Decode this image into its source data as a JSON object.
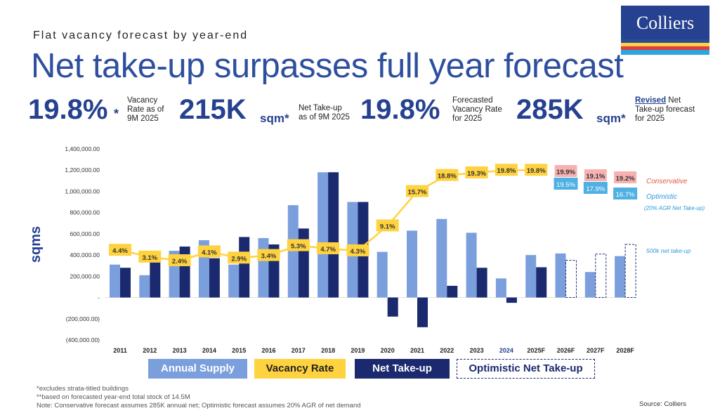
{
  "header": {
    "subtitle": "Flat vacancy forecast by year-end",
    "title": "Net take-up surpasses full year forecast"
  },
  "logo": {
    "text": "Colliers",
    "bar_colors": [
      "#2b4a9a",
      "#ffd23f",
      "#e23b3b",
      "#2aa5dd"
    ]
  },
  "kpis": {
    "vacancy": {
      "value": "19.8%",
      "star": "*",
      "label_lines": [
        "Vacancy",
        "Rate as of",
        "9M 2025"
      ]
    },
    "take_up": {
      "value": "215K",
      "unit": "sqm*",
      "label_lines": [
        "Net Take-up",
        "as of 9M 2025"
      ]
    },
    "forecast_vacancy": {
      "value": "19.8%",
      "label_lines": [
        "Forecasted",
        "Vacancy Rate",
        "for 2025"
      ]
    },
    "forecast_take_up": {
      "value": "285K",
      "unit": "sqm*",
      "revised": "Revised",
      "label_rest": " Net",
      "label_lines": [
        "Take-up forecast",
        "for 2025"
      ]
    }
  },
  "chart_data": {
    "type": "bar",
    "title": "",
    "ylabel": "sqms",
    "xlabel": "",
    "ylim": [
      -400000,
      1400000
    ],
    "y_ticks": [
      1400000,
      1200000,
      1000000,
      800000,
      600000,
      400000,
      200000,
      0,
      -200000,
      -400000
    ],
    "y_tick_labels": [
      "1,400,000.00",
      "1,200,000.00",
      "1,000,000.00",
      "800,000.00",
      "600,000.00",
      "400,000.00",
      "200,000.00",
      "-",
      "(200,000.00)",
      "(400,000.00)"
    ],
    "categories": [
      "2011",
      "2012",
      "2013",
      "2014",
      "2015",
      "2016",
      "2017",
      "2018",
      "2019",
      "2020",
      "2021",
      "2022",
      "2023",
      "2024",
      "2025F",
      "2026F",
      "2027F",
      "2028F"
    ],
    "series": [
      {
        "name": "Annual Supply",
        "color": "#7b9fdd",
        "values": [
          310000,
          210000,
          440000,
          540000,
          310000,
          560000,
          870000,
          1180000,
          900000,
          430000,
          630000,
          740000,
          610000,
          180000,
          400000,
          415000,
          240000,
          390000
        ]
      },
      {
        "name": "Net Take-up",
        "color": "#1b2a6f",
        "values": [
          280000,
          400000,
          480000,
          370000,
          570000,
          500000,
          650000,
          1180000,
          900000,
          -180000,
          -280000,
          110000,
          280000,
          -50000,
          285000,
          null,
          null,
          null
        ]
      },
      {
        "name": "Optimistic Net Take-up",
        "style": "dashed",
        "values": [
          null,
          null,
          null,
          null,
          null,
          null,
          null,
          null,
          null,
          null,
          null,
          null,
          null,
          null,
          null,
          350000,
          410000,
          500000
        ]
      }
    ],
    "vacancy_rate": {
      "name": "Vacancy Rate",
      "color": "#ffd23f",
      "values": [
        4.4,
        3.1,
        2.4,
        4.1,
        2.9,
        3.4,
        5.3,
        4.7,
        4.3,
        9.1,
        15.7,
        18.8,
        19.3,
        19.8,
        19.8
      ],
      "labels": [
        "4.4%",
        "3.1%",
        "2.4%",
        "4.1%",
        "2.9%",
        "3.4%",
        "5.3%",
        "4.7%",
        "4.3%",
        "9.1%",
        "15.7%",
        "18.8%",
        "19.3%",
        "19.8%",
        "19.8%"
      ]
    },
    "conservative": {
      "name": "Conservative",
      "color": "#f7b1b1",
      "values": [
        19.9,
        19.1,
        19.2
      ],
      "labels": [
        "19.9%",
        "19.1%",
        "19.2%"
      ]
    },
    "optimistic": {
      "name": "Optimistic",
      "note": "(20% AGR Net Take-up)",
      "color": "#4fb0e3",
      "values": [
        19.5,
        17.9,
        16.7
      ],
      "labels": [
        "19.5%",
        "17.9%",
        "16.7%"
      ]
    },
    "annotation_500k": "500k net take-up"
  },
  "legend": {
    "annual_supply": "Annual Supply",
    "vacancy_rate": "Vacancy Rate",
    "net_take_up": "Net Take-up",
    "optimistic": "Optimistic Net Take-up"
  },
  "footnotes": [
    "*excludes strata-titled buildings",
    "**based on forecasted year-end total stock of 14.5M",
    "Note: Conservative forecast assumes 285K annual net; Optimistic forecast assumes 20% AGR of net demand"
  ],
  "source": "Source: Colliers"
}
